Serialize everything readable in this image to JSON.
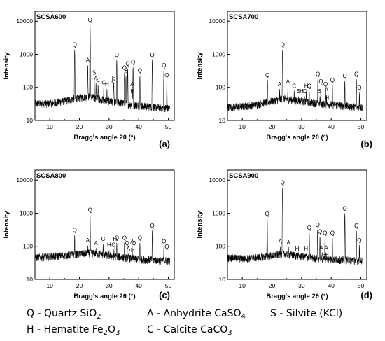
{
  "chart_data": [
    {
      "id": "a",
      "type": "line",
      "title": "SCSA600",
      "panel_label": "(a)",
      "xlabel": "Bragg's angle 2θ (°)",
      "ylabel": "Intensity",
      "xlim": [
        5,
        52
      ],
      "ylim": [
        10,
        20000
      ],
      "yscale": "log",
      "xticks": [
        "10",
        "20",
        "30",
        "40",
        "50"
      ],
      "yticks": [
        "10",
        "100",
        "1000",
        "10000"
      ],
      "baseline": [
        [
          5,
          32
        ],
        [
          10,
          32
        ],
        [
          15,
          38
        ],
        [
          20,
          48
        ],
        [
          23,
          52
        ],
        [
          26,
          46
        ],
        [
          30,
          38
        ],
        [
          35,
          32
        ],
        [
          40,
          28
        ],
        [
          45,
          25
        ],
        [
          50,
          23
        ]
      ],
      "peaks": [
        {
          "x": 18.4,
          "y": 1400,
          "label": "Q"
        },
        {
          "x": 22.8,
          "y": 480,
          "label": "A"
        },
        {
          "x": 23.6,
          "y": 8000,
          "label": "Q"
        },
        {
          "x": 25.0,
          "y": 200,
          "label": "S"
        },
        {
          "x": 25.6,
          "y": 140,
          "label": "A"
        },
        {
          "x": 26.3,
          "y": 120,
          "label": "C"
        },
        {
          "x": 28.2,
          "y": 100,
          "label": "C"
        },
        {
          "x": 29.3,
          "y": 90,
          "label": "H"
        },
        {
          "x": 31.5,
          "y": 105,
          "label": "C"
        },
        {
          "x": 31.6,
          "y": 140,
          "label": "H"
        },
        {
          "x": 32.6,
          "y": 700,
          "label": "Q"
        },
        {
          "x": 35.2,
          "y": 280,
          "label": "Q"
        },
        {
          "x": 35.7,
          "y": 230,
          "label": "S"
        },
        {
          "x": 36.3,
          "y": 380,
          "label": "Q"
        },
        {
          "x": 37.8,
          "y": 90,
          "label": "A"
        },
        {
          "x": 37.9,
          "y": 55,
          "label": "H"
        },
        {
          "x": 38.1,
          "y": 420,
          "label": "Q"
        },
        {
          "x": 40.4,
          "y": 230,
          "label": "Q"
        },
        {
          "x": 44.6,
          "y": 700,
          "label": "Q"
        },
        {
          "x": 48.5,
          "y": 330,
          "label": "Q"
        },
        {
          "x": 49.5,
          "y": 170,
          "label": "Q"
        }
      ]
    },
    {
      "id": "b",
      "type": "line",
      "title": "SCSA700",
      "panel_label": "(b)",
      "xlabel": "Bragg's angle 2θ (°)",
      "ylabel": "Intensity",
      "xlim": [
        5,
        52
      ],
      "ylim": [
        10,
        20000
      ],
      "yscale": "log",
      "xticks": [
        "10",
        "20",
        "30",
        "40",
        "50"
      ],
      "yticks": [
        "10",
        "100",
        "1000",
        "10000"
      ],
      "baseline": [
        [
          5,
          25
        ],
        [
          10,
          26
        ],
        [
          15,
          30
        ],
        [
          20,
          38
        ],
        [
          24,
          45
        ],
        [
          28,
          40
        ],
        [
          32,
          35
        ],
        [
          36,
          32
        ],
        [
          40,
          30
        ],
        [
          45,
          27
        ],
        [
          50,
          25
        ]
      ],
      "peaks": [
        {
          "x": 18.5,
          "y": 170,
          "label": "Q"
        },
        {
          "x": 22.6,
          "y": 90,
          "label": "A"
        },
        {
          "x": 23.6,
          "y": 1400,
          "label": "Q"
        },
        {
          "x": 25.4,
          "y": 110,
          "label": "A"
        },
        {
          "x": 27.5,
          "y": 80,
          "label": "C"
        },
        {
          "x": 29.0,
          "y": 55,
          "label": "S"
        },
        {
          "x": 30.0,
          "y": 55,
          "label": "H"
        },
        {
          "x": 31.0,
          "y": 55,
          "label": "C"
        },
        {
          "x": 31.6,
          "y": 80,
          "label": "H"
        },
        {
          "x": 32.6,
          "y": 80,
          "label": "Q"
        },
        {
          "x": 35.5,
          "y": 180,
          "label": "Q"
        },
        {
          "x": 36.2,
          "y": 55,
          "label": "S"
        },
        {
          "x": 36.5,
          "y": 110,
          "label": "Q"
        },
        {
          "x": 38.1,
          "y": 90,
          "label": "Q"
        },
        {
          "x": 38.4,
          "y": 60,
          "label": "A"
        },
        {
          "x": 38.6,
          "y": 35,
          "label": "H"
        },
        {
          "x": 40.4,
          "y": 120,
          "label": "Q"
        },
        {
          "x": 44.6,
          "y": 160,
          "label": "Q"
        },
        {
          "x": 48.5,
          "y": 180,
          "label": "Q"
        },
        {
          "x": 49.5,
          "y": 70,
          "label": "Q"
        }
      ]
    },
    {
      "id": "c",
      "type": "line",
      "title": "SCSA800",
      "panel_label": "(c)",
      "xlabel": "Bragg's angle 2θ (°)",
      "ylabel": "Intensity",
      "xlim": [
        5,
        52
      ],
      "ylim": [
        10,
        20000
      ],
      "yscale": "log",
      "xticks": [
        "10",
        "20",
        "30",
        "40",
        "50"
      ],
      "yticks": [
        "10",
        "100",
        "1000",
        "10000"
      ],
      "baseline": [
        [
          5,
          45
        ],
        [
          10,
          48
        ],
        [
          15,
          52
        ],
        [
          20,
          58
        ],
        [
          24,
          62
        ],
        [
          28,
          55
        ],
        [
          32,
          48
        ],
        [
          36,
          44
        ],
        [
          40,
          40
        ],
        [
          45,
          38
        ],
        [
          50,
          36
        ]
      ],
      "peaks": [
        {
          "x": 18.4,
          "y": 220,
          "label": "Q"
        },
        {
          "x": 22.8,
          "y": 110,
          "label": "A"
        },
        {
          "x": 23.6,
          "y": 900,
          "label": "Q"
        },
        {
          "x": 25.6,
          "y": 90,
          "label": "A"
        },
        {
          "x": 28.0,
          "y": 120,
          "label": "C"
        },
        {
          "x": 30.0,
          "y": 80,
          "label": "H"
        },
        {
          "x": 31.5,
          "y": 80,
          "label": "C"
        },
        {
          "x": 32.0,
          "y": 120,
          "label": "H"
        },
        {
          "x": 32.6,
          "y": 130,
          "label": "Q"
        },
        {
          "x": 35.2,
          "y": 130,
          "label": "Q"
        },
        {
          "x": 36.1,
          "y": 90,
          "label": "Q"
        },
        {
          "x": 36.5,
          "y": 60,
          "label": "A"
        },
        {
          "x": 37.8,
          "y": 100,
          "label": "A"
        },
        {
          "x": 38.0,
          "y": 55,
          "label": "H"
        },
        {
          "x": 38.4,
          "y": 90,
          "label": "Q"
        },
        {
          "x": 40.4,
          "y": 130,
          "label": "Q"
        },
        {
          "x": 44.6,
          "y": 300,
          "label": "Q"
        },
        {
          "x": 48.5,
          "y": 100,
          "label": "Q"
        },
        {
          "x": 49.5,
          "y": 70,
          "label": "Q"
        }
      ]
    },
    {
      "id": "d",
      "type": "line",
      "title": "SCSA900",
      "panel_label": "(d)",
      "xlabel": "Bragg's angle 2θ (°)",
      "ylabel": "Intensity",
      "xlim": [
        5,
        52
      ],
      "ylim": [
        10,
        20000
      ],
      "yscale": "log",
      "xticks": [
        "10",
        "20",
        "30",
        "40",
        "50"
      ],
      "yticks": [
        "10",
        "100",
        "1000",
        "10000"
      ],
      "baseline": [
        [
          5,
          45
        ],
        [
          10,
          42
        ],
        [
          15,
          45
        ],
        [
          20,
          52
        ],
        [
          24,
          58
        ],
        [
          28,
          52
        ],
        [
          32,
          46
        ],
        [
          36,
          42
        ],
        [
          40,
          40
        ],
        [
          45,
          38
        ],
        [
          50,
          36
        ]
      ],
      "peaks": [
        {
          "x": 18.4,
          "y": 700,
          "label": "Q"
        },
        {
          "x": 22.8,
          "y": 100,
          "label": "A"
        },
        {
          "x": 23.6,
          "y": 6000,
          "label": "Q"
        },
        {
          "x": 25.6,
          "y": 95,
          "label": "A"
        },
        {
          "x": 28.5,
          "y": 60,
          "label": "H"
        },
        {
          "x": 31.5,
          "y": 60,
          "label": "H"
        },
        {
          "x": 32.6,
          "y": 260,
          "label": "Q"
        },
        {
          "x": 35.4,
          "y": 320,
          "label": "Q"
        },
        {
          "x": 36.2,
          "y": 200,
          "label": "Q"
        },
        {
          "x": 36.6,
          "y": 65,
          "label": "A"
        },
        {
          "x": 37.5,
          "y": 40,
          "label": "H"
        },
        {
          "x": 37.9,
          "y": 180,
          "label": "Q"
        },
        {
          "x": 38.3,
          "y": 65,
          "label": "A"
        },
        {
          "x": 38.5,
          "y": 40,
          "label": "H"
        },
        {
          "x": 40.4,
          "y": 180,
          "label": "Q"
        },
        {
          "x": 44.6,
          "y": 1000,
          "label": "Q"
        },
        {
          "x": 48.5,
          "y": 300,
          "label": "Q"
        },
        {
          "x": 49.5,
          "y": 110,
          "label": "Q"
        }
      ]
    }
  ],
  "legend": {
    "row1": [
      {
        "label": "Q - Quartz SiO",
        "sub": "2"
      },
      {
        "label": "A - Anhydrite CaSO",
        "sub": "4"
      },
      {
        "label": "S - Silvite (KCl)",
        "sub": ""
      }
    ],
    "row2": [
      {
        "label": "H - Hematite Fe",
        "sub": "2",
        "tail": "O",
        "tail_sub": "3"
      },
      {
        "label": "C - Calcite CaCO",
        "sub": "3"
      }
    ]
  }
}
